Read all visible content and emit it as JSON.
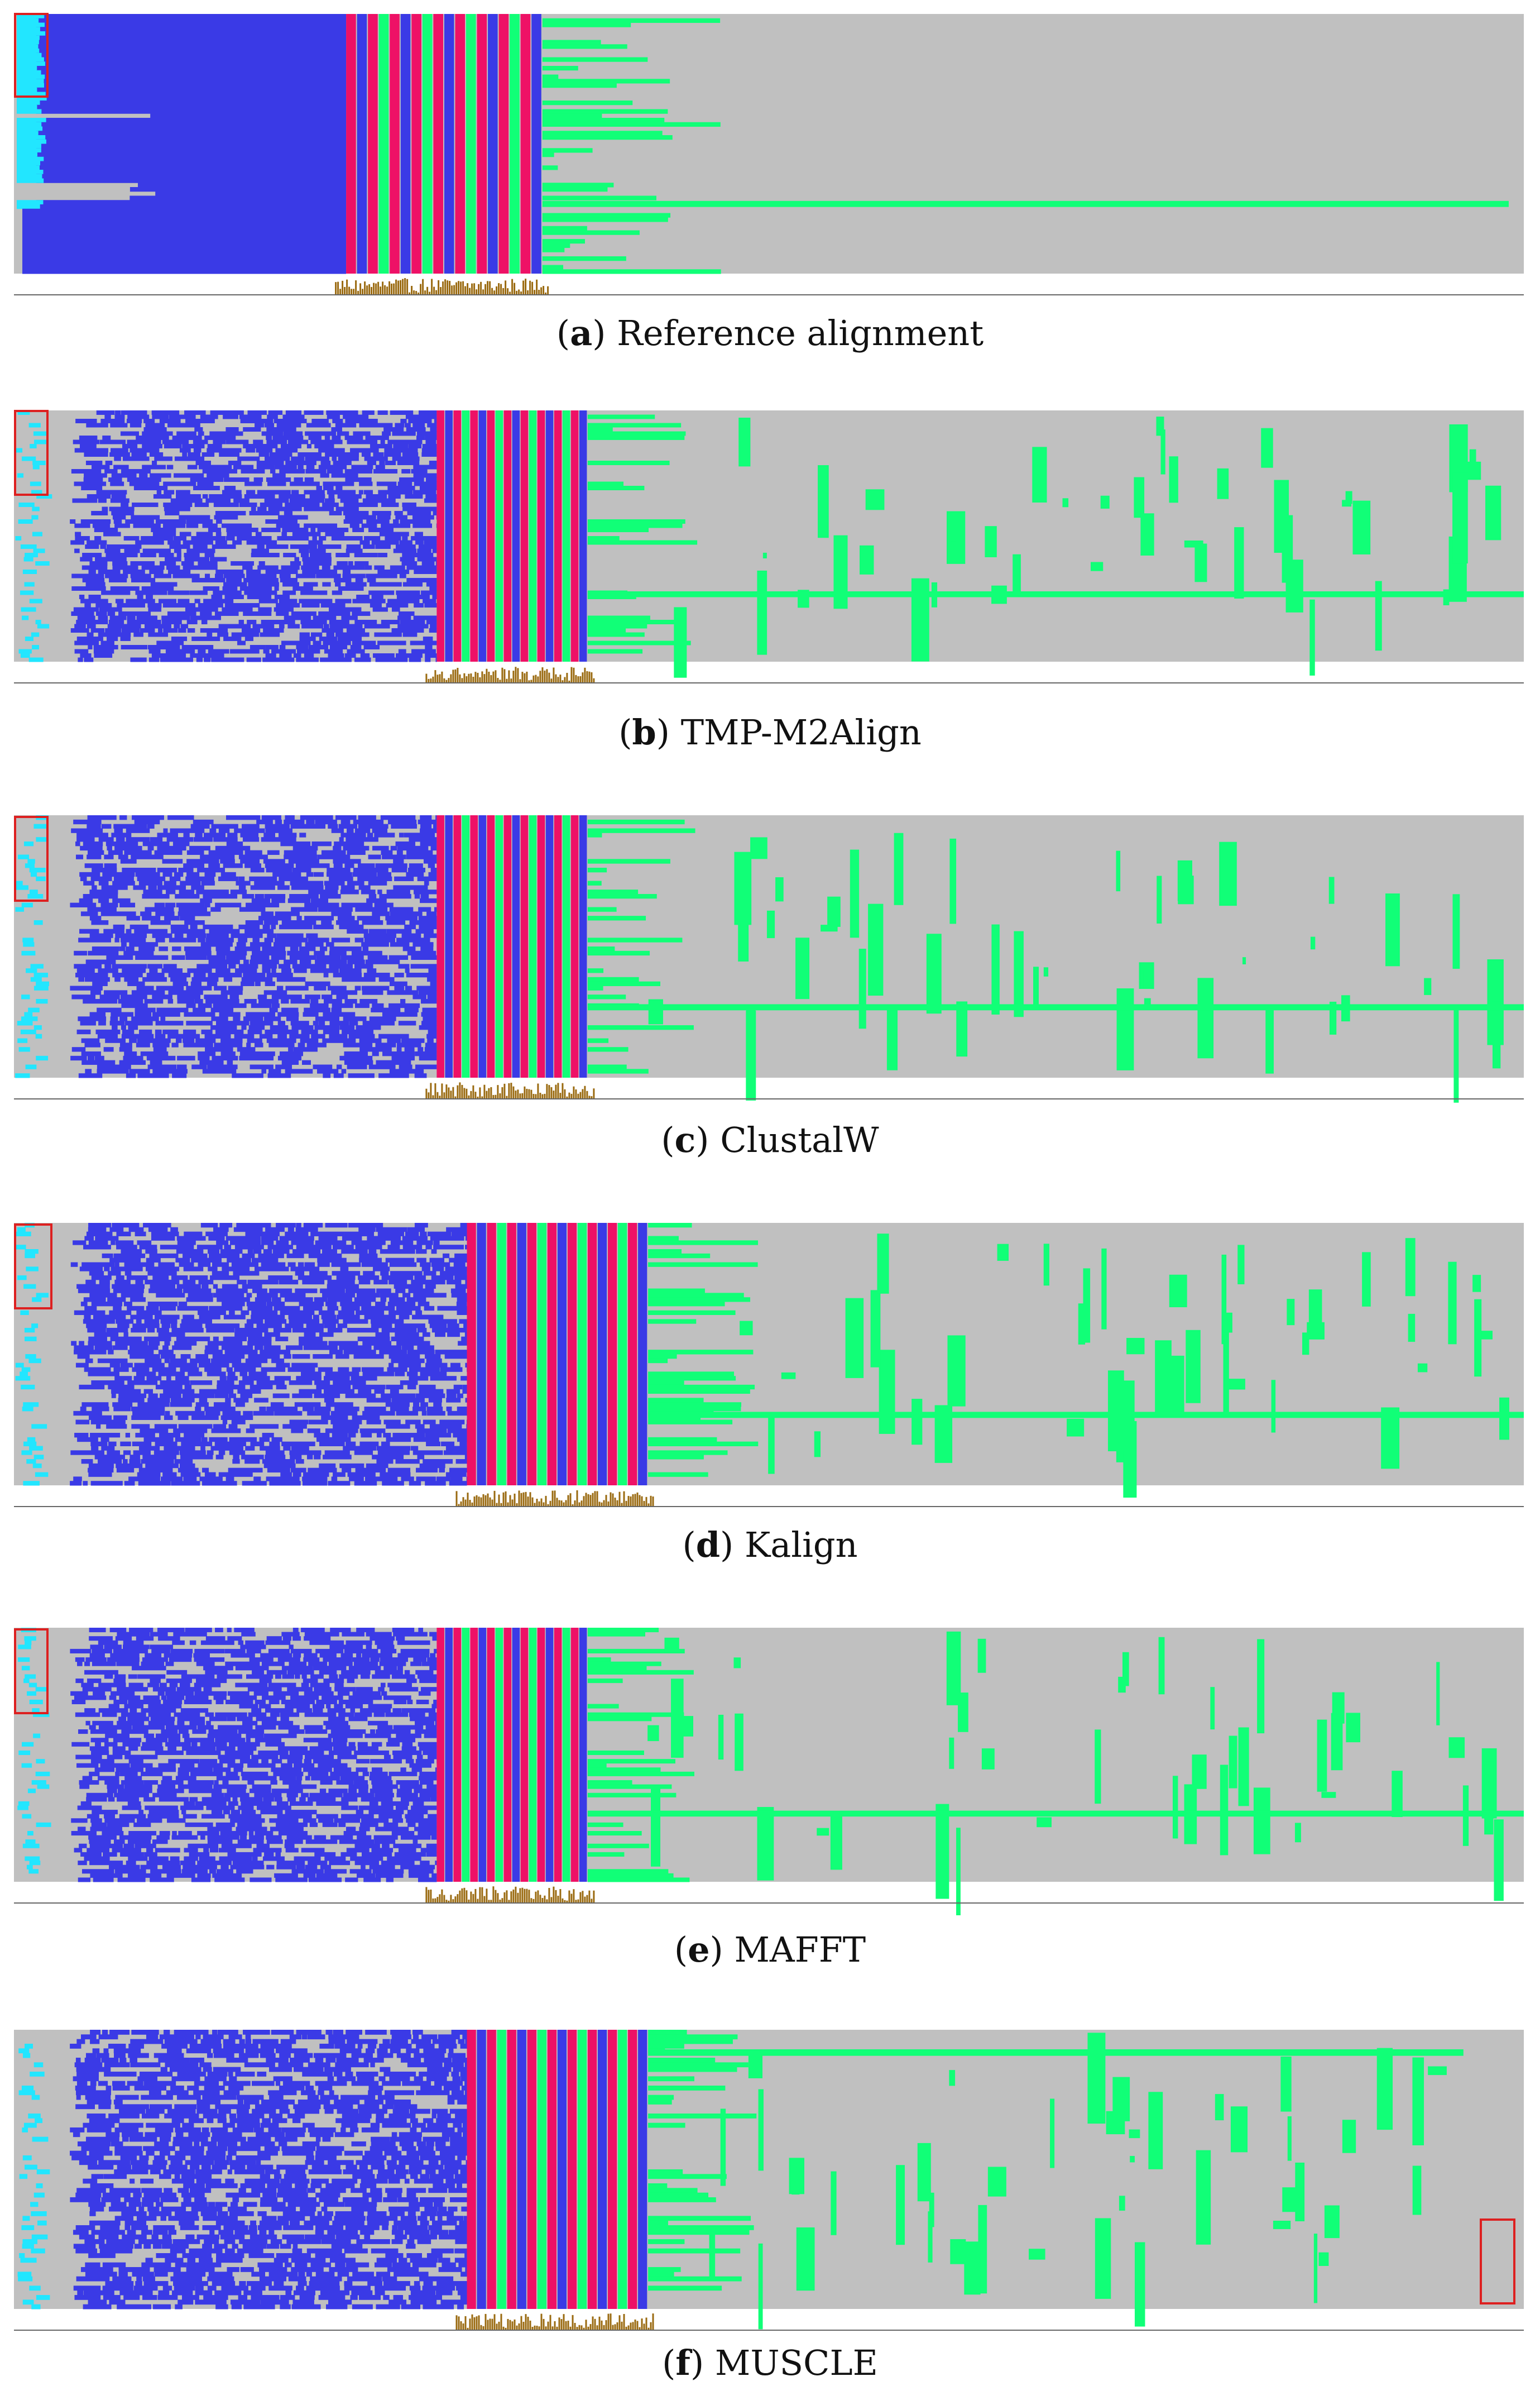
{
  "colors": {
    "gap": "#c0c0c0",
    "region_a": "#3a3ae6",
    "region_a_edge": "#22e6ff",
    "region_b": "#ee1166",
    "region_c": "#11ff77",
    "conservation": "#9a6a10",
    "highlight_box": "#dd2020"
  },
  "panels": [
    {
      "letter": "a",
      "label": "Reference alignment",
      "method": "reference",
      "segments": {
        "a_end": 0.22,
        "b_end": 0.35,
        "c_tail_end": 0.99
      }
    },
    {
      "letter": "b",
      "label": "TMP-M2Align",
      "method": "tmp-m2align",
      "segments": {
        "a_end": 0.28,
        "b_end": 0.38,
        "c_tail_end": 1.0
      }
    },
    {
      "letter": "c",
      "label": "ClustalW",
      "method": "clustalw",
      "segments": {
        "a_end": 0.28,
        "b_end": 0.38,
        "c_tail_end": 1.0
      }
    },
    {
      "letter": "d",
      "label": "Kalign",
      "method": "kalign",
      "segments": {
        "a_end": 0.3,
        "b_end": 0.42,
        "c_tail_end": 1.0
      }
    },
    {
      "letter": "e",
      "label": "MAFFT",
      "method": "mafft",
      "segments": {
        "a_end": 0.28,
        "b_end": 0.38,
        "c_tail_end": 1.0
      }
    },
    {
      "letter": "f",
      "label": "MUSCLE",
      "method": "muscle",
      "segments": {
        "a_end": 0.3,
        "b_end": 0.42,
        "c_tail_end": 0.96
      }
    }
  ]
}
